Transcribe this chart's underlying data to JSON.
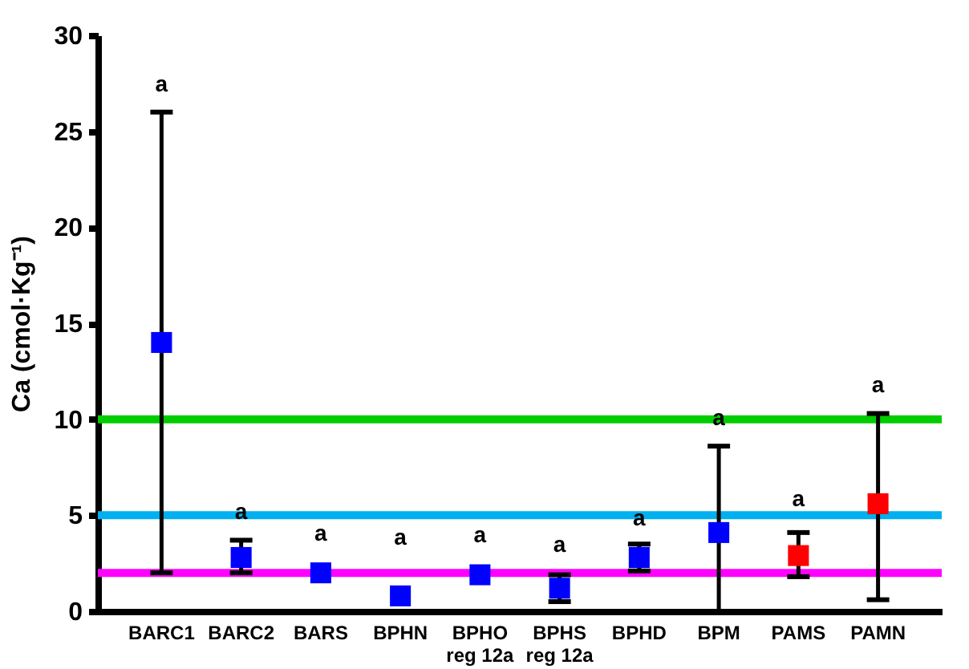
{
  "chart_data": {
    "type": "scatter",
    "ylabel": "Ca (cmol·Kg⁻¹)",
    "categories": [
      "BARC1",
      "BARC2",
      "BARS",
      "BPHN",
      "BPHO\nreg 12a",
      "BPHS\nreg 12a",
      "BPHD",
      "BPM",
      "PAMS",
      "PAMN"
    ],
    "series": [
      {
        "color": "#0000ff",
        "values": [
          14.0,
          2.8,
          2.0,
          0.8,
          1.9,
          1.2,
          2.8,
          4.1,
          null,
          null
        ],
        "errors": [
          [
            2.0,
            26.0
          ],
          [
            2.0,
            3.7
          ],
          null,
          null,
          null,
          [
            0.5,
            1.9
          ],
          [
            2.1,
            3.5
          ],
          [
            0,
            8.6
          ],
          null,
          null
        ]
      },
      {
        "color": "#ff0000",
        "values": [
          null,
          null,
          null,
          null,
          null,
          null,
          null,
          null,
          2.9,
          5.6
        ],
        "errors": [
          null,
          null,
          null,
          null,
          null,
          null,
          null,
          null,
          [
            1.8,
            4.1
          ],
          [
            0.6,
            10.3
          ]
        ]
      }
    ],
    "ylim": [
      0,
      30
    ],
    "yticks": [
      0,
      5,
      10,
      15,
      20,
      25,
      30
    ],
    "marker": "square",
    "ref_lines": [
      {
        "axis": "y",
        "value": 10,
        "color": "#00cc00"
      },
      {
        "axis": "y",
        "value": 5,
        "color": "#00b0f0"
      },
      {
        "axis": "y",
        "value": 2,
        "color": "#ff00ff"
      }
    ],
    "annotations": [
      {
        "text": "a",
        "x": "BARC1",
        "y": 26.0
      },
      {
        "text": "a",
        "x": "BARC2",
        "y": 3.7
      },
      {
        "text": "a",
        "x": "BARS",
        "y": 2.6
      },
      {
        "text": "a",
        "x": "BPHN",
        "y": 2.4
      },
      {
        "text": "a",
        "x": "BPHO\nreg 12a",
        "y": 2.5
      },
      {
        "text": "a",
        "x": "BPHS\nreg 12a",
        "y": 2.0
      },
      {
        "text": "a",
        "x": "BPHD",
        "y": 3.4
      },
      {
        "text": "a",
        "x": "BPM",
        "y": 8.6
      },
      {
        "text": "a",
        "x": "PAMS",
        "y": 4.4
      },
      {
        "text": "a",
        "x": "PAMN",
        "y": 10.3
      }
    ]
  }
}
